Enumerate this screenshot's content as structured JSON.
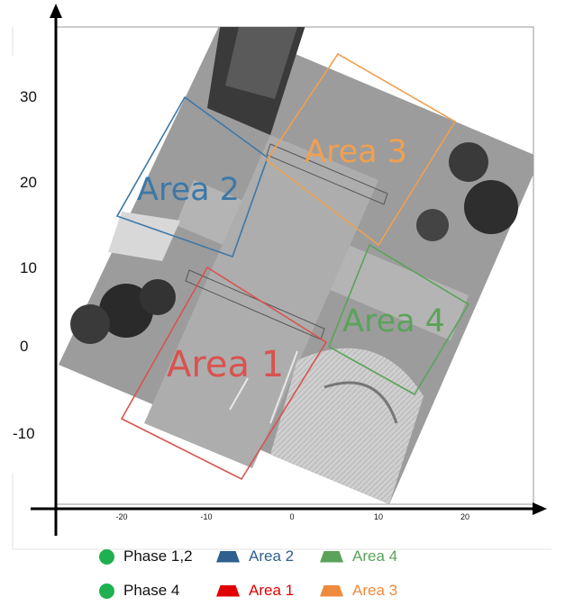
{
  "axes": {
    "x_ticks": [
      "-20",
      "-10",
      "0",
      "10",
      "20"
    ],
    "y_ticks": [
      "30",
      "20",
      "10",
      "0",
      "-10"
    ]
  },
  "areas": [
    {
      "label": "Area 1",
      "color": "#d9534f"
    },
    {
      "label": "Area 2",
      "color": "#3d78a8"
    },
    {
      "label": "Area 3",
      "color": "#f0a050"
    },
    {
      "label": "Area 4",
      "color": "#5aa35a"
    }
  ],
  "legend": {
    "phase_1_2": {
      "label": "Phase 1,2",
      "color": "#1fb050"
    },
    "phase_4": {
      "label": "Phase 4",
      "color": "#1fb050"
    },
    "area_2": {
      "label": "Area 2",
      "color": "#2f5f8f"
    },
    "area_4": {
      "label": "Area 4",
      "color": "#5aa35a"
    },
    "area_1": {
      "label": "Area 1",
      "color": "#e00000"
    },
    "area_3": {
      "label": "Area 3",
      "color": "#f08a3c"
    }
  }
}
